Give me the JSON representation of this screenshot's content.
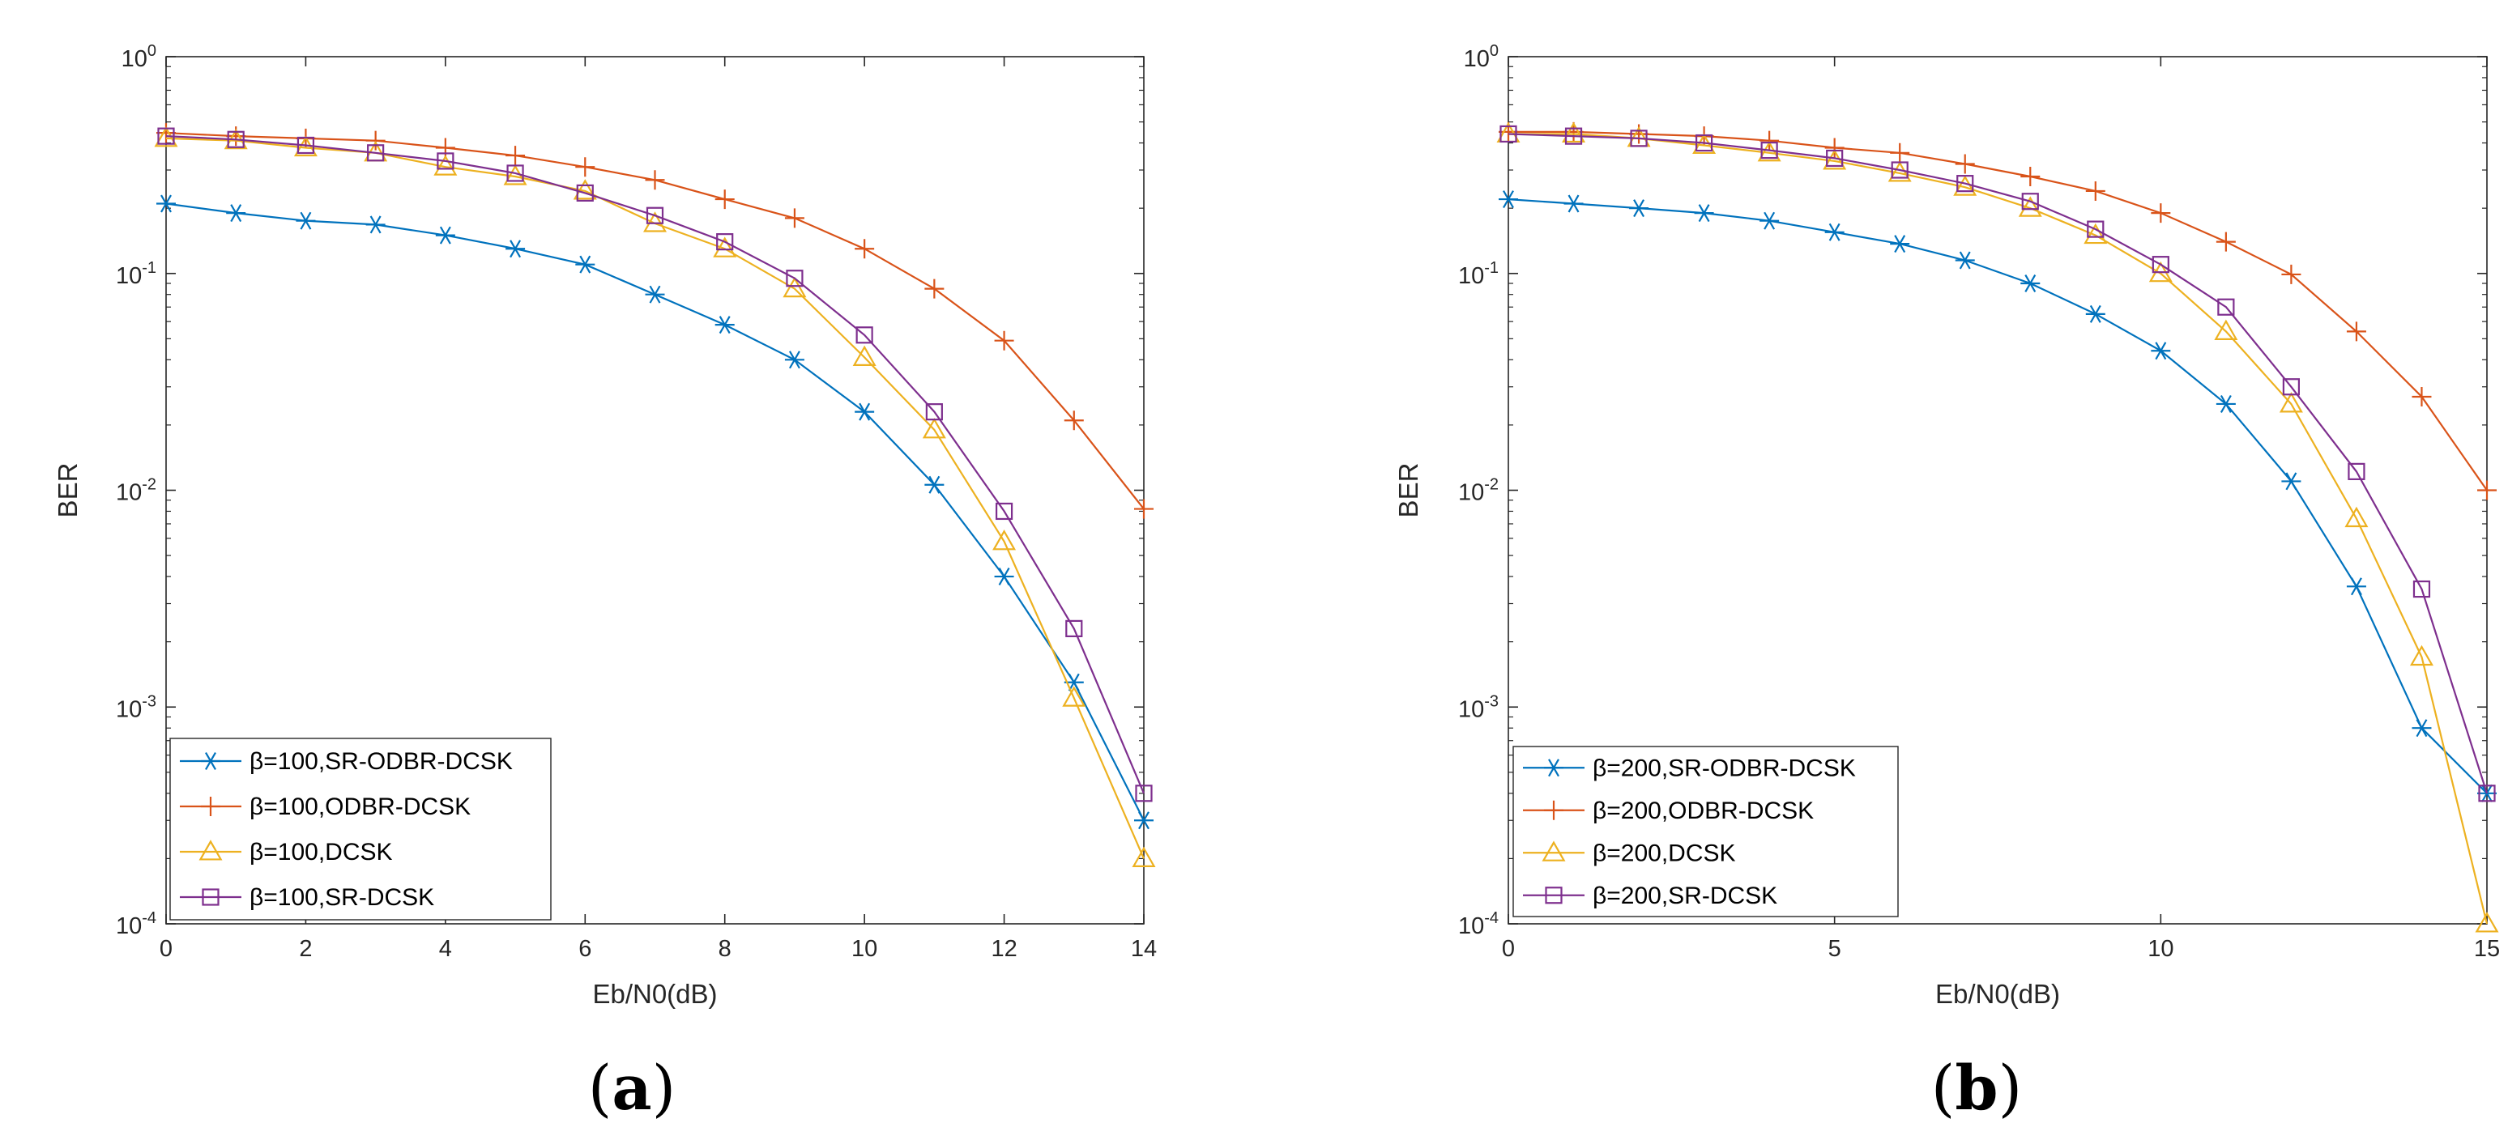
{
  "chart_data": [
    {
      "type": "line",
      "panel": "a",
      "caption_label": "a",
      "yscale": "log",
      "xlabel": "Eb/N0(dB)",
      "ylabel": "BER",
      "xlim": [
        0,
        14
      ],
      "ylim": [
        0.0001,
        1
      ],
      "xticks": [
        0,
        2,
        4,
        6,
        8,
        10,
        12,
        14
      ],
      "yticks": [
        {
          "base": "10",
          "exp": "0"
        },
        {
          "base": "10",
          "exp": "-1"
        },
        {
          "base": "10",
          "exp": "-2"
        },
        {
          "base": "10",
          "exp": "-3"
        },
        {
          "base": "10",
          "exp": "-4"
        }
      ],
      "grid": false,
      "legend_position": "bottom-left",
      "x": [
        0,
        1,
        2,
        3,
        4,
        5,
        6,
        7,
        8,
        9,
        10,
        11,
        12,
        13,
        14
      ],
      "series": [
        {
          "name": "β=100,SR-ODBR-DCSK",
          "color": "#0072BD",
          "marker": "asterisk",
          "values": [
            0.21,
            0.19,
            0.175,
            0.168,
            0.15,
            0.13,
            0.11,
            0.08,
            0.058,
            0.04,
            0.023,
            0.0106,
            0.004,
            0.0013,
            0.0003
          ]
        },
        {
          "name": "β=100,ODBR-DCSK",
          "color": "#D95319",
          "marker": "plus",
          "values": [
            0.445,
            0.43,
            0.42,
            0.41,
            0.38,
            0.35,
            0.31,
            0.27,
            0.22,
            0.18,
            0.13,
            0.085,
            0.049,
            0.021,
            0.0082
          ]
        },
        {
          "name": "β=100,DCSK",
          "color": "#EDB120",
          "marker": "triangle",
          "values": [
            0.42,
            0.41,
            0.38,
            0.36,
            0.31,
            0.28,
            0.24,
            0.17,
            0.13,
            0.085,
            0.041,
            0.019,
            0.0058,
            0.0011,
            0.0002
          ]
        },
        {
          "name": "β=100,SR-DCSK",
          "color": "#7E2F8E",
          "marker": "square",
          "values": [
            0.43,
            0.415,
            0.39,
            0.36,
            0.33,
            0.29,
            0.235,
            0.185,
            0.14,
            0.095,
            0.052,
            0.023,
            0.008,
            0.0023,
            0.0004
          ]
        }
      ]
    },
    {
      "type": "line",
      "panel": "b",
      "caption_label": "b",
      "yscale": "log",
      "xlabel": "Eb/N0(dB)",
      "ylabel": "BER",
      "xlim": [
        0,
        15
      ],
      "ylim": [
        0.0001,
        1
      ],
      "xticks": [
        0,
        5,
        10,
        15
      ],
      "yticks": [
        {
          "base": "10",
          "exp": "0"
        },
        {
          "base": "10",
          "exp": "-1"
        },
        {
          "base": "10",
          "exp": "-2"
        },
        {
          "base": "10",
          "exp": "-3"
        },
        {
          "base": "10",
          "exp": "-4"
        }
      ],
      "grid": false,
      "legend_position": "bottom-left",
      "x": [
        0,
        1,
        2,
        3,
        4,
        5,
        6,
        7,
        8,
        9,
        10,
        11,
        12,
        13,
        14,
        15
      ],
      "series": [
        {
          "name": "β=200,SR-ODBR-DCSK",
          "color": "#0072BD",
          "marker": "asterisk",
          "values": [
            0.22,
            0.21,
            0.2,
            0.19,
            0.175,
            0.155,
            0.137,
            0.115,
            0.09,
            0.065,
            0.044,
            0.025,
            0.011,
            0.0036,
            0.0008,
            0.0004
          ]
        },
        {
          "name": "β=200,ODBR-DCSK",
          "color": "#D95319",
          "marker": "plus",
          "values": [
            0.45,
            0.45,
            0.44,
            0.43,
            0.41,
            0.38,
            0.36,
            0.32,
            0.28,
            0.24,
            0.19,
            0.14,
            0.099,
            0.054,
            0.027,
            0.01
          ]
        },
        {
          "name": "β=200,DCSK",
          "color": "#EDB120",
          "marker": "triangle",
          "values": [
            0.44,
            0.44,
            0.42,
            0.39,
            0.36,
            0.33,
            0.29,
            0.25,
            0.2,
            0.15,
            0.1,
            0.054,
            0.025,
            0.0074,
            0.0017,
            0.0001
          ]
        },
        {
          "name": "β=200,SR-DCSK",
          "color": "#7E2F8E",
          "marker": "square",
          "values": [
            0.44,
            0.43,
            0.42,
            0.4,
            0.37,
            0.34,
            0.3,
            0.26,
            0.215,
            0.16,
            0.11,
            0.07,
            0.03,
            0.0122,
            0.0035,
            0.0004
          ]
        }
      ]
    }
  ]
}
